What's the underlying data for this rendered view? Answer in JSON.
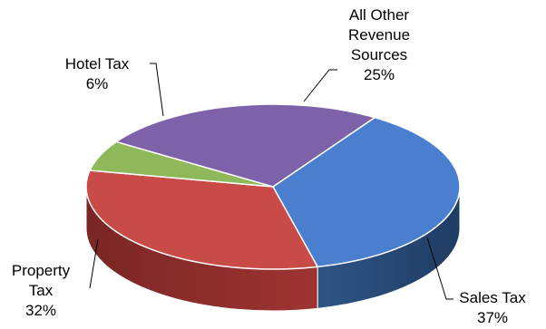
{
  "chart_data": {
    "type": "pie",
    "title": "",
    "three_d": true,
    "slices": [
      {
        "label_lines": [
          "Sales Tax"
        ],
        "pct_label": "37%",
        "value": 37,
        "color": "#4a7ecf"
      },
      {
        "label_lines": [
          "Property",
          "Tax"
        ],
        "pct_label": "32%",
        "value": 32,
        "color": "#c84b48"
      },
      {
        "label_lines": [
          "Hotel Tax"
        ],
        "pct_label": "6%",
        "value": 6,
        "color": "#8fb85a"
      },
      {
        "label_lines": [
          "All Other",
          "Revenue",
          "Sources"
        ],
        "pct_label": "25%",
        "value": 25,
        "color": "#7d62a9"
      }
    ]
  }
}
